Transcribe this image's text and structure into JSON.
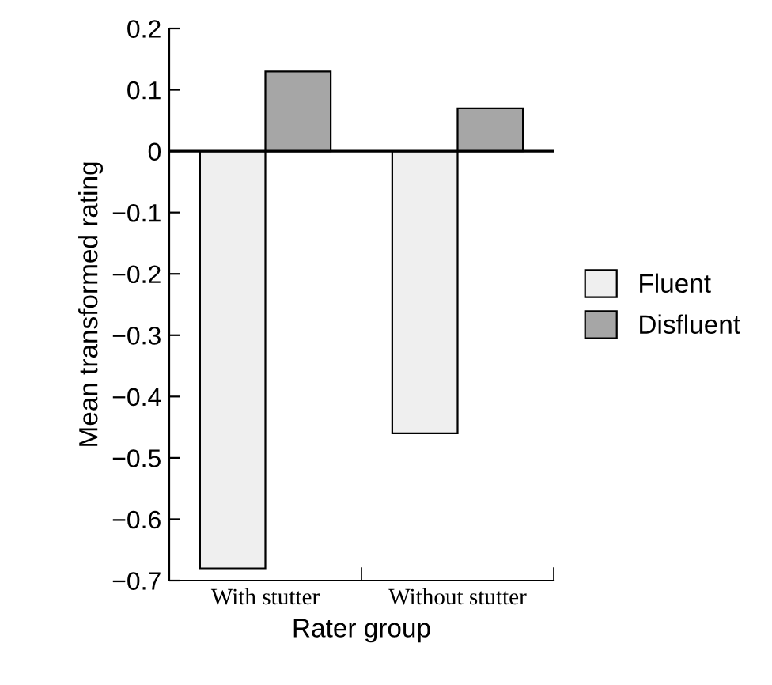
{
  "chart_data": {
    "type": "bar",
    "xlabel": "Rater group",
    "ylabel": "Mean transformed rating",
    "categories": [
      "With stutter",
      "Without stutter"
    ],
    "series": [
      {
        "name": "Fluent",
        "color": "#efefef",
        "values": [
          -0.68,
          -0.46
        ]
      },
      {
        "name": "Disfluent",
        "color": "#a6a6a6",
        "values": [
          0.13,
          0.07
        ]
      }
    ],
    "ylim": [
      -0.7,
      0.2
    ],
    "yticks": [
      {
        "value": -0.7,
        "label": "−0.7"
      },
      {
        "value": -0.6,
        "label": "−0.6"
      },
      {
        "value": -0.5,
        "label": "−0.5"
      },
      {
        "value": -0.4,
        "label": "−0.4"
      },
      {
        "value": -0.3,
        "label": "−0.3"
      },
      {
        "value": -0.2,
        "label": "−0.2"
      },
      {
        "value": -0.1,
        "label": "−0.1"
      },
      0,
      0.1,
      0.2
    ],
    "ref_lines": [
      {
        "axis": "y",
        "value": 0,
        "color": "#000000"
      }
    ],
    "grid": false,
    "legend": "right"
  }
}
